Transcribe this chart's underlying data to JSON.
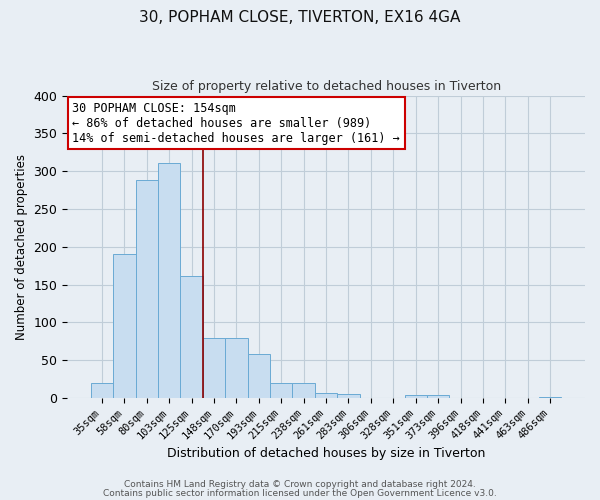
{
  "title": "30, POPHAM CLOSE, TIVERTON, EX16 4GA",
  "subtitle": "Size of property relative to detached houses in Tiverton",
  "xlabel": "Distribution of detached houses by size in Tiverton",
  "ylabel": "Number of detached properties",
  "bar_labels": [
    "35sqm",
    "58sqm",
    "80sqm",
    "103sqm",
    "125sqm",
    "148sqm",
    "170sqm",
    "193sqm",
    "215sqm",
    "238sqm",
    "261sqm",
    "283sqm",
    "306sqm",
    "328sqm",
    "351sqm",
    "373sqm",
    "396sqm",
    "418sqm",
    "441sqm",
    "463sqm",
    "486sqm"
  ],
  "bar_values": [
    20,
    190,
    288,
    311,
    161,
    80,
    80,
    59,
    20,
    20,
    7,
    6,
    0,
    0,
    4,
    4,
    0,
    0,
    0,
    0,
    2
  ],
  "bar_color": "#c8ddf0",
  "bar_edge_color": "#6aaad4",
  "vline_x": 4.5,
  "vline_color": "#8b0000",
  "ylim": [
    0,
    400
  ],
  "yticks": [
    0,
    50,
    100,
    150,
    200,
    250,
    300,
    350,
    400
  ],
  "annotation_text": "30 POPHAM CLOSE: 154sqm\n← 86% of detached houses are smaller (989)\n14% of semi-detached houses are larger (161) →",
  "annotation_box_color": "#ffffff",
  "annotation_box_edge": "#cc0000",
  "footer_line1": "Contains HM Land Registry data © Crown copyright and database right 2024.",
  "footer_line2": "Contains public sector information licensed under the Open Government Licence v3.0.",
  "background_color": "#e8eef4",
  "plot_background": "#e8eef4",
  "grid_color": "#c0cdd8"
}
